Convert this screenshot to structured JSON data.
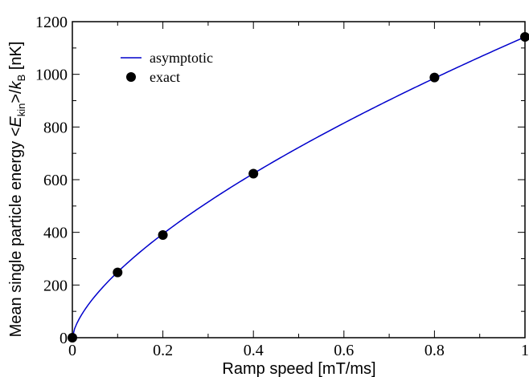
{
  "chart_data": {
    "type": "line",
    "xlabel": "Ramp speed [mT/ms]",
    "ylabel": {
      "prefix": "Mean single particle energy <",
      "E": "E",
      "kin": "kin",
      "mid": ">/",
      "k": "k",
      "B": "B",
      "suffix": " [nK]"
    },
    "xlim": [
      0,
      1
    ],
    "ylim": [
      0,
      1200
    ],
    "xticks": [
      0,
      0.2,
      0.4,
      0.6,
      0.8,
      1
    ],
    "xtick_labels": [
      "0",
      "0.2",
      "0.4",
      "0.6",
      "0.8",
      "1"
    ],
    "yticks": [
      0,
      200,
      400,
      600,
      800,
      1000,
      1200
    ],
    "ytick_labels": [
      "0",
      "200",
      "400",
      "600",
      "800",
      "1000",
      "1200"
    ],
    "grid": false,
    "legend_position": "top-left",
    "series": [
      {
        "name": "asymptotic",
        "kind": "line",
        "color": "#0000cc",
        "model": {
          "form": "power",
          "coefficient": 1142,
          "exponent": 0.661
        }
      },
      {
        "name": "exact",
        "kind": "markers",
        "color": "#000000",
        "x": [
          0,
          0.1,
          0.2,
          0.4,
          0.8,
          1.0
        ],
        "y": [
          0,
          248,
          390,
          623,
          988,
          1142
        ]
      }
    ]
  }
}
